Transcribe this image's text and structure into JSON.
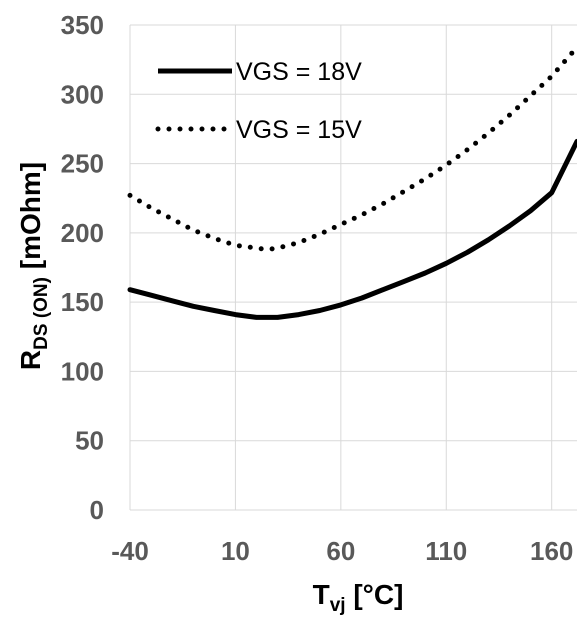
{
  "chart_data": {
    "type": "line",
    "xlabel": {
      "main": "T",
      "sub": "vj",
      "rest": " [°C]"
    },
    "ylabel": {
      "main": "R",
      "sub": "DS (ON)",
      "rest": " [mOhm]"
    },
    "xlim": [
      -40,
      172
    ],
    "ylim": [
      0,
      350
    ],
    "xticks": [
      -40,
      10,
      60,
      110,
      160
    ],
    "yticks": [
      0,
      50,
      100,
      150,
      200,
      250,
      300,
      350
    ],
    "grid": true,
    "legend_position": "top-left",
    "series": [
      {
        "name": "VGS = 18V",
        "style": "solid",
        "color": "#000000",
        "x": [
          -40,
          -30,
          -20,
          -10,
          0,
          10,
          20,
          25,
          30,
          40,
          50,
          60,
          70,
          80,
          90,
          100,
          110,
          120,
          130,
          140,
          150,
          160,
          172
        ],
        "y": [
          159,
          155,
          151,
          147,
          144,
          141,
          139,
          139,
          139,
          141,
          144,
          148,
          153,
          159,
          165,
          171,
          178,
          186,
          195,
          205,
          216,
          229,
          266
        ]
      },
      {
        "name": "VGS = 15V",
        "style": "dotted",
        "color": "#000000",
        "x": [
          -40,
          -30,
          -20,
          -10,
          0,
          10,
          20,
          25,
          30,
          40,
          50,
          60,
          70,
          80,
          90,
          100,
          110,
          120,
          130,
          140,
          150,
          160,
          172
        ],
        "y": [
          227,
          218,
          210,
          202,
          196,
          191,
          189,
          188,
          189,
          193,
          199,
          206,
          213,
          221,
          230,
          239,
          249,
          260,
          272,
          285,
          299,
          313,
          334
        ]
      }
    ]
  }
}
